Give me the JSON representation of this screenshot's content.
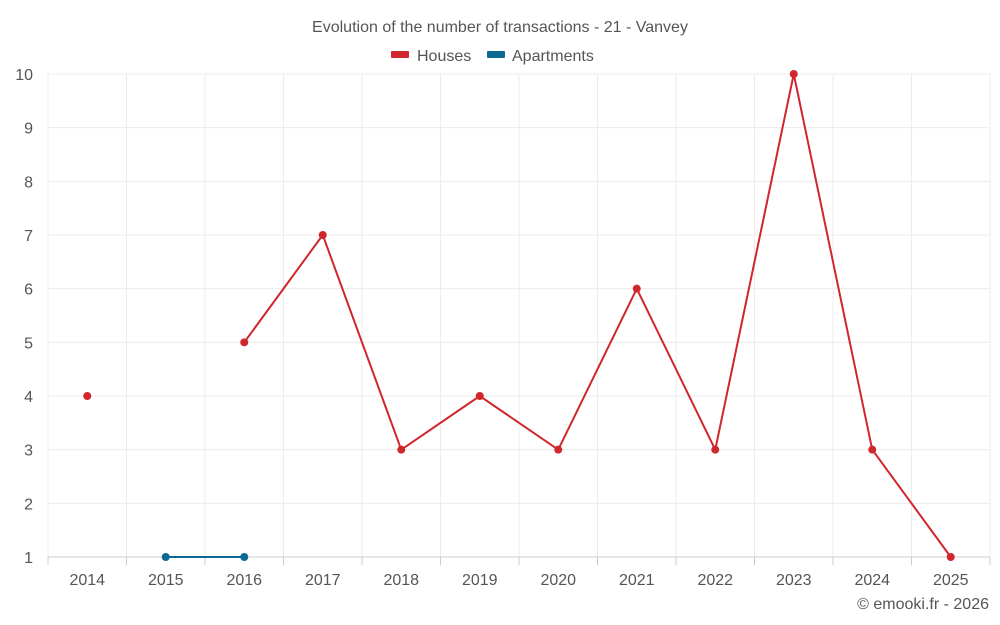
{
  "chart_data": {
    "type": "line",
    "title": "Evolution of the number of transactions - 21 - Vanvey",
    "categories": [
      "2014",
      "2015",
      "2016",
      "2017",
      "2018",
      "2019",
      "2020",
      "2021",
      "2022",
      "2023",
      "2024",
      "2025"
    ],
    "ylim": [
      1,
      10
    ],
    "yticks": [
      1,
      2,
      3,
      4,
      5,
      6,
      7,
      8,
      9,
      10
    ],
    "grid": true,
    "legend_position": "top-center",
    "series": [
      {
        "name": "Houses",
        "color": "#d0262d",
        "values": [
          4,
          null,
          5,
          7,
          3,
          4,
          3,
          6,
          3,
          10,
          3,
          1
        ]
      },
      {
        "name": "Apartments",
        "color": "#0e6896",
        "values": [
          null,
          1,
          1,
          null,
          null,
          null,
          null,
          null,
          null,
          null,
          null,
          null
        ]
      }
    ],
    "credit": "© emooki.fr - 2026"
  }
}
